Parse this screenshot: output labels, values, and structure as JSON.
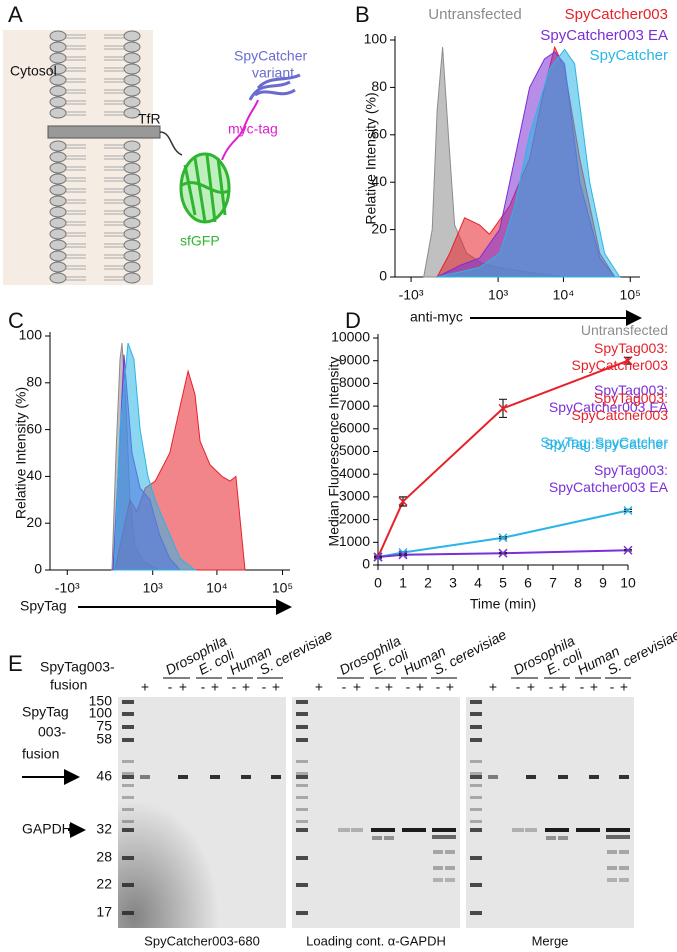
{
  "diagram": {
    "panel": "A",
    "cytosol": "Cytosol",
    "tfr": "TfR",
    "myc": "myc-tag",
    "sfgfp": "sfGFP",
    "spycatcher": [
      "SpyCatcher",
      "variant"
    ]
  },
  "chart_data": [
    {
      "panel": "B",
      "type": "area",
      "xscale": "biexponential",
      "xlabel": "anti-myc",
      "ylabel": "Relative Intensity (%)",
      "xlim": [
        -1800,
        140000
      ],
      "ylim": [
        0,
        100
      ],
      "xticks": [
        {
          "value": -1000,
          "label": "-10³"
        },
        {
          "value": 1000,
          "label": "10³"
        },
        {
          "value": 10000,
          "label": "10⁴"
        },
        {
          "value": 100000,
          "label": "10⁵"
        }
      ],
      "yticks": [
        0,
        20,
        40,
        60,
        80,
        100
      ],
      "series": [
        {
          "name": "Untransfected",
          "color": "#8c8c8c",
          "x": [
            -600,
            -400,
            -300,
            -200,
            -100,
            0,
            200,
            500,
            1000,
            3000,
            10000
          ],
          "values": [
            0,
            20,
            70,
            97,
            60,
            22,
            10,
            6,
            4,
            2,
            0
          ]
        },
        {
          "name": "SpyCatcher003",
          "color": "#e8202a",
          "x": [
            -300,
            -80,
            165,
            456,
            714,
            1530,
            3100,
            5200,
            7400,
            10400,
            17500,
            35000,
            58700
          ],
          "values": [
            0,
            10,
            25,
            22,
            18,
            30,
            50,
            80,
            97,
            88,
            50,
            10,
            0
          ]
        },
        {
          "name": "SpyCatcher003 EA",
          "color": "#7b2fd6",
          "x": [
            -300,
            100,
            456,
            1060,
            1840,
            3100,
            5200,
            7400,
            10400,
            17500,
            35000,
            58700
          ],
          "values": [
            0,
            5,
            8,
            20,
            50,
            80,
            92,
            95,
            90,
            40,
            8,
            0
          ]
        },
        {
          "name": "SpyCatcher",
          "color": "#2bb5e6",
          "x": [
            -300,
            456,
            1060,
            1840,
            3100,
            6250,
            10400,
            14700,
            24700,
            41400,
            69600
          ],
          "values": [
            0,
            4,
            10,
            30,
            60,
            88,
            96,
            90,
            40,
            10,
            0
          ]
        }
      ]
    },
    {
      "panel": "C",
      "type": "area",
      "xscale": "biexponential",
      "xlabel": "SpyTag",
      "ylabel": "Relative Intensity (%)",
      "xlim": [
        -1900,
        130000
      ],
      "ylim": [
        0,
        100
      ],
      "xticks": [
        {
          "value": -1000,
          "label": "-10³"
        },
        {
          "value": 1000,
          "label": "10³"
        },
        {
          "value": 10000,
          "label": "10⁴"
        },
        {
          "value": 100000,
          "label": "10⁵"
        }
      ],
      "yticks": [
        0,
        20,
        40,
        60,
        80,
        100
      ],
      "series": [
        {
          "name": "Untransfected",
          "color": "#8c8c8c",
          "x": [
            33,
            99,
            168,
            203,
            278,
            358,
            470,
            740,
            1300
          ],
          "values": [
            0,
            50,
            90,
            97,
            70,
            30,
            10,
            3,
            0
          ]
        },
        {
          "name": "SpyTag003: SpyCatcher003",
          "color": "#e8202a",
          "x": [
            82,
            258,
            358,
            510,
            740,
            1100,
            1890,
            2730,
            3620,
            4620,
            5530,
            7850,
            11950,
            15800,
            19500,
            26800
          ],
          "values": [
            0,
            20,
            30,
            25,
            35,
            38,
            50,
            70,
            85,
            75,
            55,
            45,
            40,
            38,
            40,
            0
          ]
        },
        {
          "name": "SpyTag003: SpyCatcher003 EA",
          "color": "#7b2fd6",
          "x": [
            49,
            133,
            240,
            400,
            593,
            895,
            1300,
            1890,
            2730
          ],
          "values": [
            0,
            40,
            92,
            50,
            35,
            30,
            15,
            5,
            0
          ]
        },
        {
          "name": "SpyTag: SpyCatcher",
          "color": "#2bb5e6",
          "x": [
            66,
            168,
            317,
            445,
            593,
            830,
            1100,
            1580,
            2730,
            4620
          ],
          "values": [
            0,
            60,
            97,
            90,
            60,
            40,
            30,
            20,
            5,
            0
          ]
        }
      ]
    },
    {
      "panel": "D",
      "type": "line",
      "xlabel": "Time (min)",
      "ylabel": "Median Fluorescence Intensity",
      "x": [
        0,
        1,
        5,
        10
      ],
      "xlim": [
        0,
        10
      ],
      "xticks": [
        0,
        1,
        2,
        3,
        4,
        5,
        6,
        7,
        8,
        9,
        10
      ],
      "ylim": [
        0,
        10000
      ],
      "yticks": [
        0,
        1000,
        2000,
        3000,
        4000,
        5000,
        6000,
        7000,
        8000,
        9000,
        10000
      ],
      "series": [
        {
          "name": "SpyTag003: SpyCatcher003",
          "color": "#e8202a",
          "values": [
            350,
            2800,
            6900,
            9000
          ],
          "errors": [
            50,
            200,
            400,
            150
          ]
        },
        {
          "name": "SpyTag:SpyCatcher",
          "color": "#2bb5e6",
          "values": [
            350,
            550,
            1200,
            2400
          ],
          "errors": [
            30,
            40,
            50,
            50
          ]
        },
        {
          "name": "SpyTag003: SpyCatcher003 EA",
          "color": "#7b2fd6",
          "values": [
            350,
            450,
            520,
            650
          ],
          "errors": [
            30,
            30,
            30,
            30
          ]
        }
      ]
    }
  ],
  "gel": {
    "panel": "E",
    "row_label": [
      "SpyTag003-",
      "fusion"
    ],
    "species": [
      "Drosophila",
      "E. coli",
      "Human",
      "S. cerevisiae"
    ],
    "signs": [
      "+",
      "-",
      "+",
      "-",
      "+",
      "-",
      "+",
      "-",
      "+"
    ],
    "ladder": [
      150,
      100,
      75,
      58,
      46,
      32,
      28,
      22,
      17
    ],
    "fusion_label": [
      "SpyTag",
      "003-",
      "fusion"
    ],
    "gapdh_label": "GAPDH",
    "captions": [
      "SpyCatcher003-680",
      "Loading cont. α-GAPDH",
      "Merge"
    ]
  }
}
